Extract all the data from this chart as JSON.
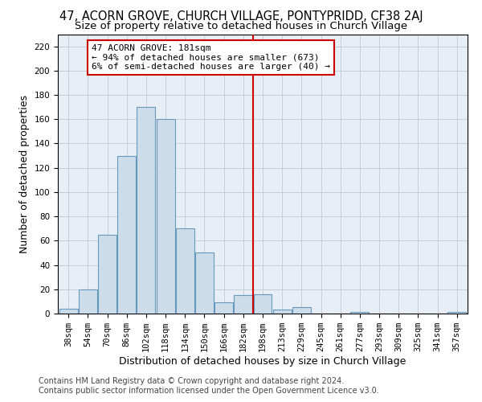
{
  "title": "47, ACORN GROVE, CHURCH VILLAGE, PONTYPRIDD, CF38 2AJ",
  "subtitle": "Size of property relative to detached houses in Church Village",
  "xlabel": "Distribution of detached houses by size in Church Village",
  "ylabel": "Number of detached properties",
  "bar_labels": [
    "38sqm",
    "54sqm",
    "70sqm",
    "86sqm",
    "102sqm",
    "118sqm",
    "134sqm",
    "150sqm",
    "166sqm",
    "182sqm",
    "198sqm",
    "213sqm",
    "229sqm",
    "245sqm",
    "261sqm",
    "277sqm",
    "293sqm",
    "309sqm",
    "325sqm",
    "341sqm",
    "357sqm"
  ],
  "bar_values": [
    4,
    20,
    65,
    130,
    170,
    160,
    70,
    50,
    9,
    15,
    16,
    3,
    5,
    0,
    0,
    1,
    0,
    0,
    0,
    0,
    1
  ],
  "bar_color": "#ccdce8",
  "bar_edge_color": "#6699bb",
  "vline_x_index": 9,
  "vline_color": "#cc0000",
  "ylim": [
    0,
    230
  ],
  "yticks": [
    0,
    20,
    40,
    60,
    80,
    100,
    120,
    140,
    160,
    180,
    200,
    220
  ],
  "annotation_title": "47 ACORN GROVE: 181sqm",
  "annotation_line1": "← 94% of detached houses are smaller (673)",
  "annotation_line2": "6% of semi-detached houses are larger (40) →",
  "annotation_box_color": "#ffffff",
  "annotation_box_edge": "#cc0000",
  "footer_line1": "Contains HM Land Registry data © Crown copyright and database right 2024.",
  "footer_line2": "Contains public sector information licensed under the Open Government Licence v3.0.",
  "background_color": "#ffffff",
  "plot_bg_color": "#e8eef5",
  "grid_color": "#c5cfd8",
  "title_fontsize": 10.5,
  "subtitle_fontsize": 9.5,
  "axis_label_fontsize": 9,
  "tick_fontsize": 7.5,
  "annotation_fontsize": 8,
  "footer_fontsize": 7
}
